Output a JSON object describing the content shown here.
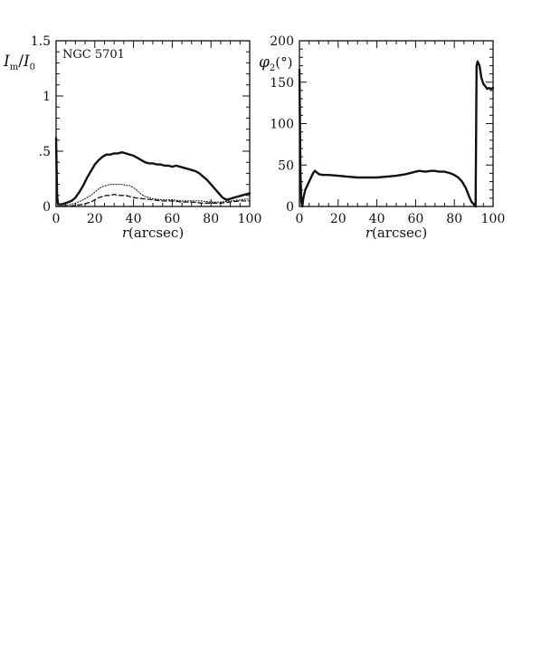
{
  "chart_data": [
    {
      "type": "line",
      "title": "",
      "annotation": "NGC 5701",
      "ylabel": "I_m/I_0",
      "ylabel_main": "I",
      "ylabel_sub1": "m",
      "ylabel_sep": "/",
      "ylabel_den": "I",
      "ylabel_sub2": "0",
      "xlabel": "r(arcsec)",
      "xlabel_var": "r",
      "xlabel_unit": "(arcsec)",
      "xlim": [
        0,
        100
      ],
      "ylim": [
        0,
        1.5
      ],
      "xticks": [
        0,
        20,
        40,
        60,
        80,
        100
      ],
      "xtick_labels": [
        "0",
        "20",
        "40",
        "60",
        "80",
        "100"
      ],
      "yticks": [
        0,
        0.5,
        1,
        1.5
      ],
      "ytick_labels": [
        "0",
        ".5",
        "1",
        "1.5"
      ],
      "grid": false,
      "series": [
        {
          "style": "solid",
          "x": [
            0,
            0.5,
            1,
            3,
            5,
            8,
            10,
            12,
            14,
            16,
            18,
            20,
            22,
            24,
            26,
            28,
            30,
            32,
            34,
            36,
            38,
            40,
            42,
            44,
            46,
            48,
            50,
            52,
            54,
            56,
            58,
            60,
            62,
            64,
            66,
            68,
            70,
            72,
            74,
            76,
            78,
            80,
            82,
            84,
            86,
            88,
            90,
            92,
            94,
            96,
            98,
            100
          ],
          "y": [
            0.62,
            0.1,
            0.02,
            0.02,
            0.03,
            0.05,
            0.08,
            0.13,
            0.19,
            0.26,
            0.32,
            0.38,
            0.42,
            0.45,
            0.47,
            0.47,
            0.48,
            0.48,
            0.49,
            0.48,
            0.47,
            0.46,
            0.44,
            0.42,
            0.4,
            0.39,
            0.39,
            0.38,
            0.38,
            0.37,
            0.37,
            0.36,
            0.37,
            0.36,
            0.35,
            0.34,
            0.33,
            0.32,
            0.3,
            0.27,
            0.24,
            0.2,
            0.16,
            0.12,
            0.08,
            0.06,
            0.07,
            0.08,
            0.09,
            0.1,
            0.11,
            0.12
          ]
        },
        {
          "style": "dotted",
          "x": [
            0,
            5,
            10,
            14,
            18,
            20,
            22,
            24,
            26,
            28,
            30,
            32,
            34,
            36,
            38,
            40,
            42,
            44,
            46,
            48,
            50,
            55,
            60,
            65,
            70,
            75,
            80,
            85,
            90,
            95,
            100
          ],
          "y": [
            0.0,
            0.01,
            0.03,
            0.06,
            0.1,
            0.13,
            0.16,
            0.18,
            0.19,
            0.2,
            0.2,
            0.2,
            0.2,
            0.19,
            0.19,
            0.17,
            0.14,
            0.11,
            0.09,
            0.08,
            0.07,
            0.06,
            0.06,
            0.05,
            0.05,
            0.05,
            0.04,
            0.04,
            0.05,
            0.06,
            0.07
          ]
        },
        {
          "style": "dashed",
          "x": [
            0,
            5,
            10,
            14,
            18,
            20,
            22,
            24,
            26,
            28,
            30,
            32,
            34,
            36,
            38,
            40,
            45,
            50,
            55,
            60,
            65,
            70,
            75,
            80,
            85,
            90,
            95,
            100
          ],
          "y": [
            0.0,
            0.0,
            0.01,
            0.02,
            0.04,
            0.06,
            0.08,
            0.09,
            0.1,
            0.1,
            0.11,
            0.1,
            0.1,
            0.1,
            0.09,
            0.08,
            0.07,
            0.06,
            0.05,
            0.05,
            0.04,
            0.04,
            0.03,
            0.03,
            0.03,
            0.04,
            0.05,
            0.05
          ]
        }
      ]
    },
    {
      "type": "line",
      "title": "",
      "ylabel": "φ2(°)",
      "ylabel_main": "φ",
      "ylabel_sub": "2",
      "ylabel_unit": "(°)",
      "xlabel": "r(arcsec)",
      "xlabel_var": "r",
      "xlabel_unit": "(arcsec)",
      "xlim": [
        0,
        100
      ],
      "ylim": [
        0,
        200
      ],
      "xticks": [
        0,
        20,
        40,
        60,
        80,
        100
      ],
      "xtick_labels": [
        "0",
        "20",
        "40",
        "60",
        "80",
        "100"
      ],
      "yticks": [
        0,
        50,
        100,
        150,
        200
      ],
      "ytick_labels": [
        "0",
        "50",
        "100",
        "150",
        "200"
      ],
      "grid": false,
      "series": [
        {
          "style": "solid",
          "x": [
            0,
            0.5,
            1,
            1.5,
            2,
            3,
            4,
            5,
            6,
            7,
            8,
            9,
            10,
            12,
            15,
            20,
            25,
            30,
            35,
            40,
            45,
            50,
            55,
            60,
            62,
            65,
            68,
            70,
            72,
            75,
            78,
            80,
            82,
            84,
            86,
            88,
            89,
            90,
            91,
            91.5,
            92,
            93,
            94,
            95,
            96,
            97,
            98,
            99,
            100
          ],
          "y": [
            165,
            40,
            5,
            0,
            10,
            20,
            25,
            30,
            35,
            40,
            43,
            41,
            39,
            38,
            38,
            37,
            36,
            35,
            35,
            35,
            36,
            37,
            39,
            42,
            43,
            42,
            43,
            43,
            42,
            42,
            40,
            38,
            35,
            30,
            22,
            10,
            5,
            3,
            0,
            170,
            175,
            170,
            155,
            148,
            145,
            142,
            143,
            142,
            143
          ]
        }
      ]
    }
  ]
}
